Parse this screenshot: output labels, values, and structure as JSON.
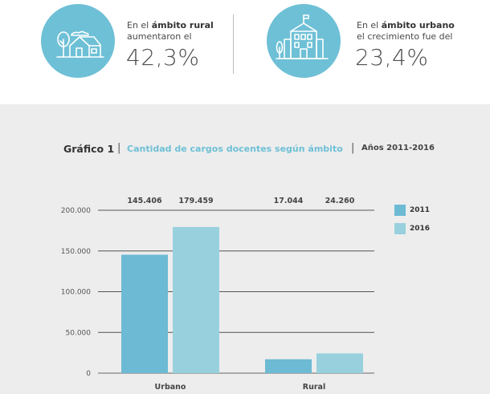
{
  "stats": [
    {
      "line1_prefix": "En el ",
      "line1_bold": "ámbito rural",
      "line2": "aumentaron el",
      "value": "42,3%",
      "icon": "rural-house-icon"
    },
    {
      "line1_prefix": "En el ",
      "line1_bold": "ámbito urbano",
      "line2": "el crecimiento fue del",
      "value": "23,4%",
      "icon": "school-building-icon"
    }
  ],
  "colors": {
    "circle": "#6ec0d6",
    "series_2011": "#6cbad3",
    "series_2016": "#98d1dd",
    "panel": "#ededed"
  },
  "chart_data": {
    "type": "bar",
    "title_main": "Gráfico 1",
    "title_sub": "Cantidad de cargos docentes según ámbito",
    "title_years": "Años 2011-2016",
    "categories": [
      "Urbano",
      "Rural"
    ],
    "series": [
      {
        "name": "2011",
        "values": [
          145406,
          17044
        ],
        "value_labels": [
          "145.406",
          "17.044"
        ]
      },
      {
        "name": "2016",
        "values": [
          179459,
          24260
        ],
        "value_labels": [
          "179.459",
          "24.260"
        ]
      }
    ],
    "ylim": [
      0,
      200000
    ],
    "yticks": [
      0,
      50000,
      100000,
      150000,
      200000
    ],
    "ytick_labels": [
      "0",
      "50.000",
      "100.000",
      "150.000",
      "200.000"
    ],
    "legend_position": "right",
    "grid": true
  }
}
